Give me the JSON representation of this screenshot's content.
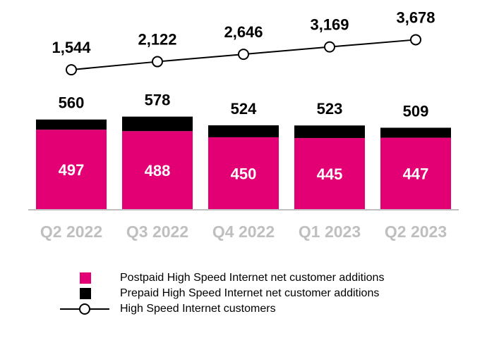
{
  "chart_data": {
    "type": "bar-line",
    "categories": [
      "Q2 2022",
      "Q3 2022",
      "Q4 2022",
      "Q1 2023",
      "Q2 2023"
    ],
    "series": [
      {
        "name": "Postpaid High Speed Internet net customer additions",
        "color": "#e20074",
        "values": [
          497,
          488,
          450,
          445,
          447
        ]
      },
      {
        "name": "Prepaid High Speed Internet net customer additions",
        "color": "#000000",
        "values": [
          63,
          90,
          74,
          78,
          62
        ]
      },
      {
        "name": "High Speed Internet customers",
        "color": "#000000",
        "axis": "y2",
        "values": [
          1544,
          2122,
          2646,
          3169,
          3678
        ],
        "value_labels": [
          "1,544",
          "2,122",
          "2,646",
          "3,169",
          "3,678"
        ]
      }
    ],
    "totals": [
      560,
      578,
      524,
      523,
      509
    ],
    "ylim": [
      0,
      1000
    ],
    "y2lim": [
      0,
      4000
    ]
  }
}
